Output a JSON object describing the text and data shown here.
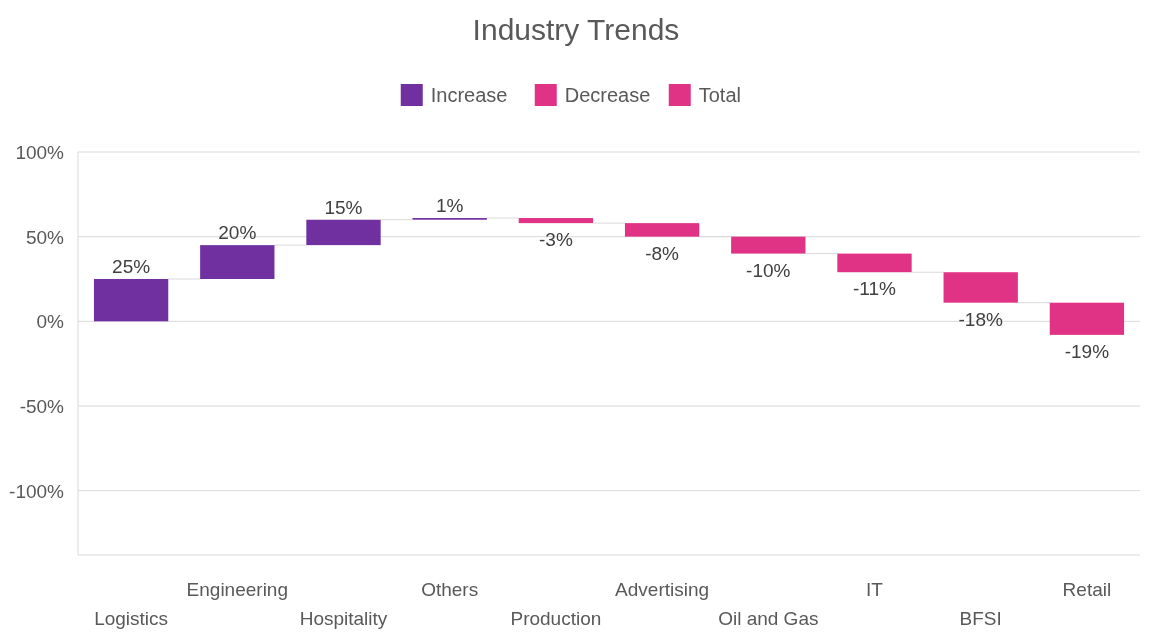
{
  "chart_data": {
    "type": "bar",
    "title": "Industry Trends",
    "categories": [
      "Logistics",
      "Engineering",
      "Hospitality",
      "Others",
      "Production",
      "Advertising",
      "Oil and Gas",
      "IT",
      "BFSI",
      "Retail"
    ],
    "series": [
      {
        "name": "Increase",
        "color": "#7030a0",
        "values": [
          25,
          20,
          15,
          1,
          null,
          null,
          null,
          null,
          null,
          null
        ],
        "base": [
          0,
          25,
          45,
          60,
          null,
          null,
          null,
          null,
          null,
          null
        ],
        "value_labels": [
          "25%",
          "20%",
          "15%",
          "1%",
          null,
          null,
          null,
          null,
          null,
          null
        ]
      },
      {
        "name": "Decrease",
        "color": "#e03385",
        "values": [
          null,
          null,
          null,
          null,
          -3,
          -8,
          -10,
          -11,
          -18,
          -19
        ],
        "base": [
          null,
          null,
          null,
          null,
          61,
          58,
          50,
          40,
          29,
          11
        ],
        "value_labels": [
          null,
          null,
          null,
          null,
          "-3%",
          "-8%",
          "-10%",
          "-11%",
          "-18%",
          "-19%"
        ]
      },
      {
        "name": "Total",
        "color": "#e03385",
        "values": [
          null,
          null,
          null,
          null,
          null,
          null,
          null,
          null,
          null,
          null
        ]
      }
    ],
    "ylim": [
      -138,
      100
    ],
    "yticks": [
      {
        "value": -100,
        "label": "-100%"
      },
      {
        "value": -50,
        "label": "-50%"
      },
      {
        "value": 0,
        "label": "0%"
      },
      {
        "value": 50,
        "label": "50%"
      },
      {
        "value": 100,
        "label": "100%"
      }
    ],
    "grid": "y",
    "legend": "top"
  }
}
